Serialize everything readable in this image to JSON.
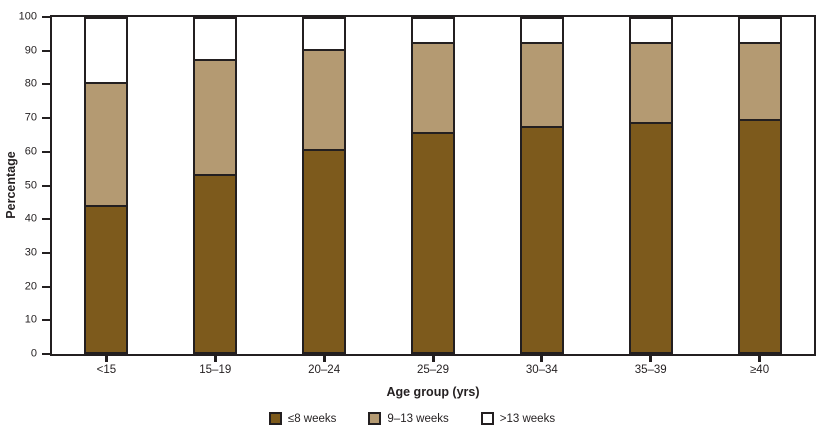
{
  "chart_data": {
    "type": "bar",
    "stacked": true,
    "title": "",
    "xlabel": "Age group (yrs)",
    "ylabel": "Percentage",
    "ylim": [
      0,
      100
    ],
    "yticks": [
      0,
      10,
      20,
      30,
      40,
      50,
      60,
      70,
      80,
      90,
      100
    ],
    "categories": [
      "<15",
      "15–19",
      "20–24",
      "25–29",
      "30–34",
      "35–39",
      "≥40"
    ],
    "series": [
      {
        "name": "≤8 weeks",
        "color": "#7d5a1c",
        "values": [
          44,
          53.5,
          61,
          66,
          68,
          69,
          70
        ]
      },
      {
        "name": "9–13 weeks",
        "color": "#b49a72",
        "values": [
          37,
          34.5,
          30,
          27,
          25,
          24,
          23
        ]
      },
      {
        "name": ">13 weeks",
        "color": "#ffffff",
        "values": [
          19,
          12,
          9,
          7,
          7,
          7,
          7
        ]
      }
    ],
    "grid": false,
    "legend_position": "bottom",
    "axis_color": "#231f20",
    "bar_outline_color": "#231f20"
  }
}
